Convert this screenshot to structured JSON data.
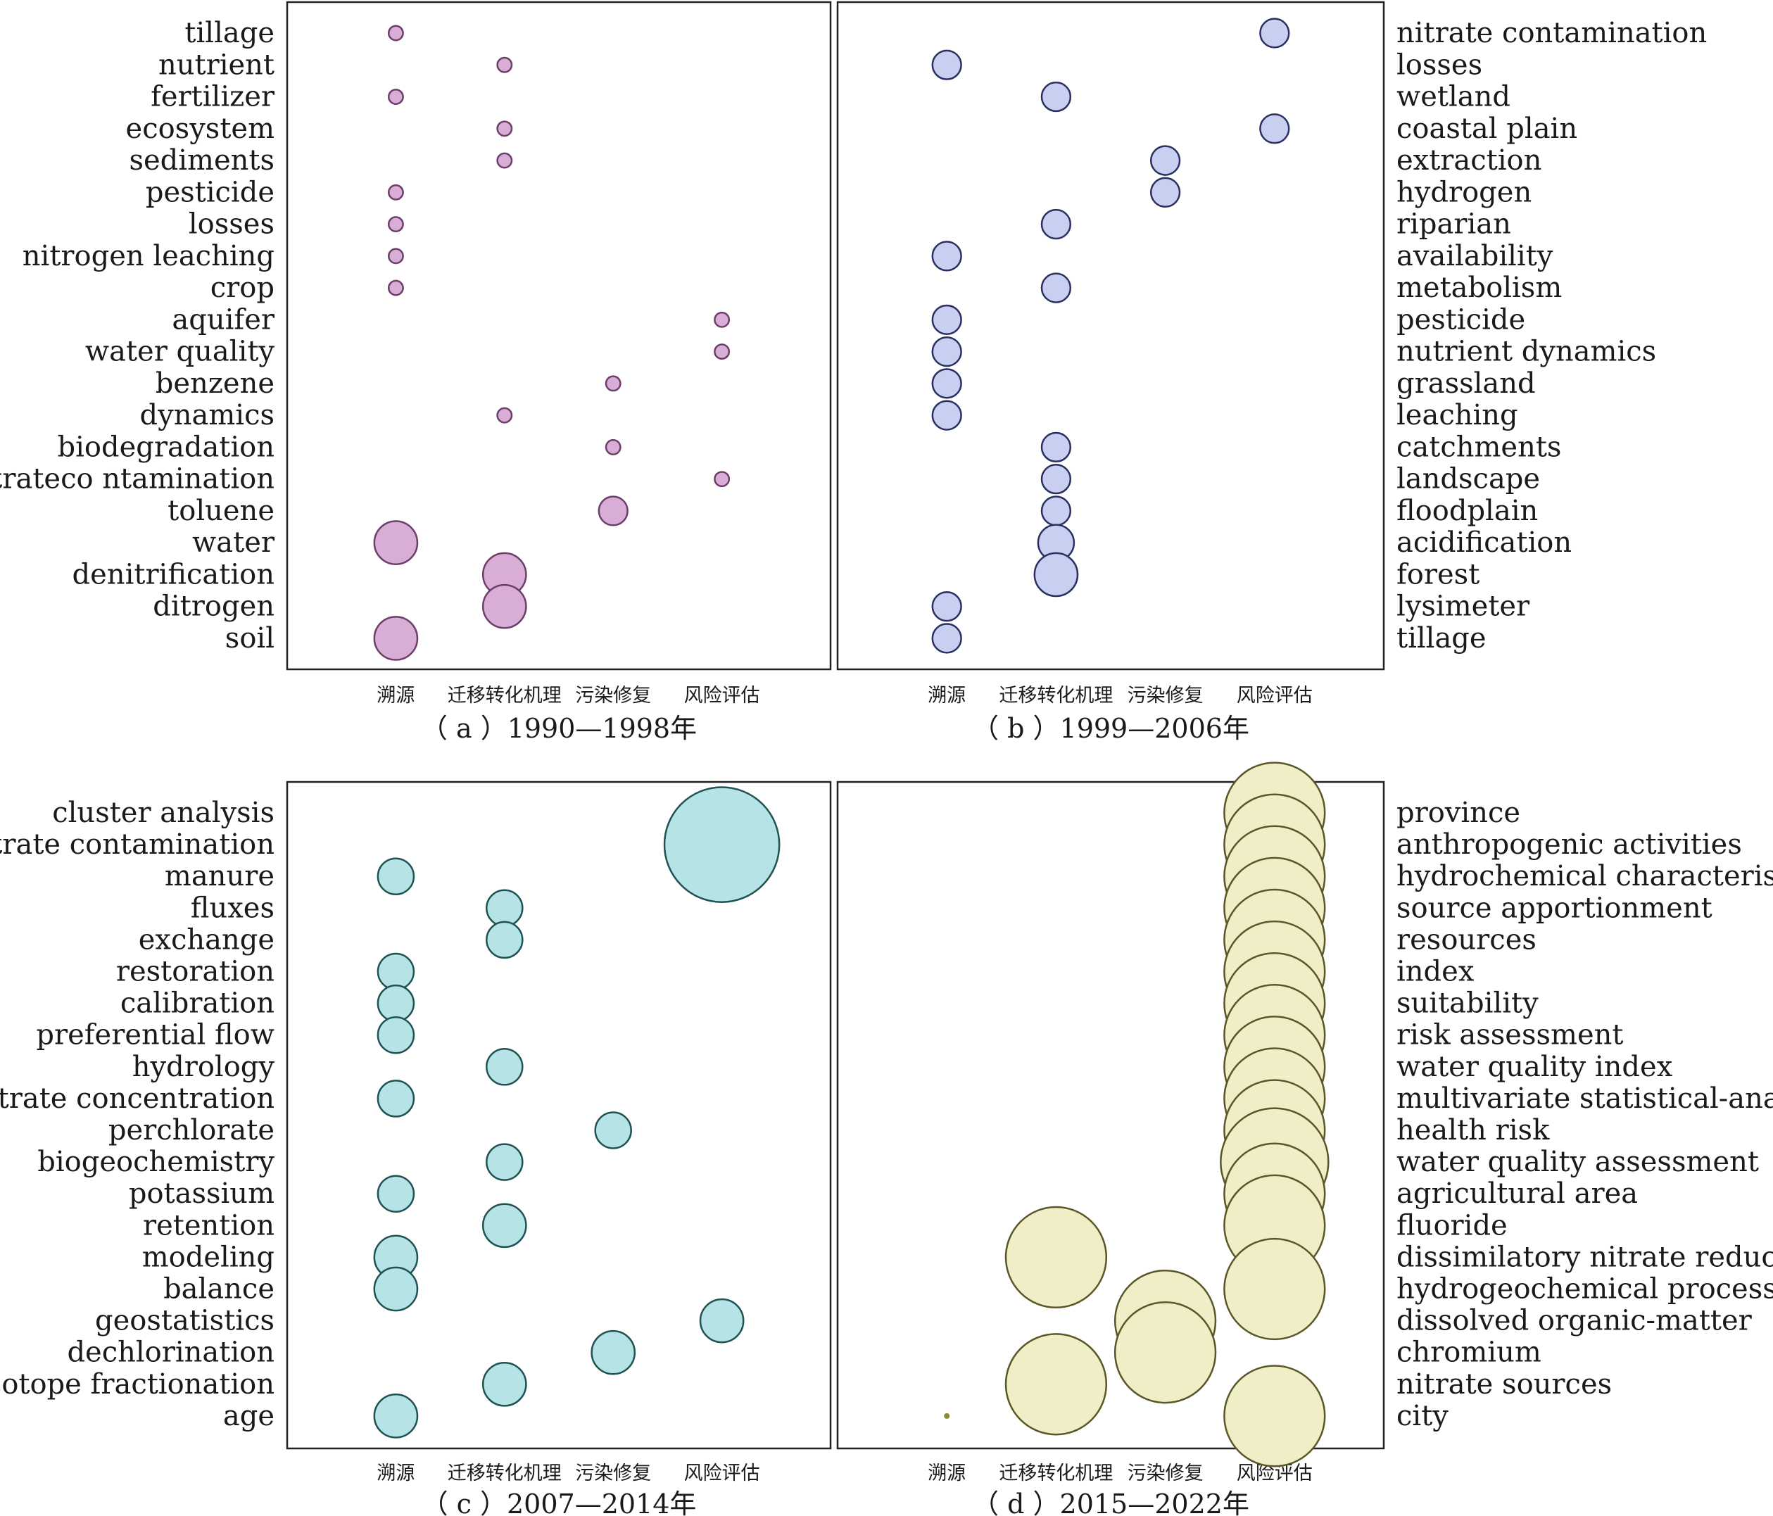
{
  "x_categories": [
    "溯源",
    "迁移转化机理",
    "污染修复",
    "风险评估"
  ],
  "chart_data": [
    {
      "type": "scatter",
      "caption": "（ a ）1990—1998年",
      "label_side": "left",
      "fill": "#d9aed6",
      "stroke": "#6d3e69",
      "categories": [
        "tillage",
        "nutrient",
        "fertilizer",
        "ecosystem",
        "sediments",
        "pesticide",
        "losses",
        "nitrogen leaching",
        "crop",
        "aquifer",
        "water quality",
        "benzene",
        "dynamics",
        "biodegradation",
        "nitrateco ntamination",
        "toluene",
        "water",
        "denitrification",
        "ditrogen",
        "soil"
      ],
      "points": [
        {
          "x": "溯源",
          "size": 1
        },
        {
          "x": "迁移转化机理",
          "size": 1
        },
        {
          "x": "溯源",
          "size": 1
        },
        {
          "x": "迁移转化机理",
          "size": 1
        },
        {
          "x": "迁移转化机理",
          "size": 1
        },
        {
          "x": "溯源",
          "size": 1
        },
        {
          "x": "溯源",
          "size": 1
        },
        {
          "x": "溯源",
          "size": 1
        },
        {
          "x": "溯源",
          "size": 1
        },
        {
          "x": "风险评估",
          "size": 1
        },
        {
          "x": "风险评估",
          "size": 1
        },
        {
          "x": "污染修复",
          "size": 1
        },
        {
          "x": "迁移转化机理",
          "size": 1
        },
        {
          "x": "污染修复",
          "size": 1
        },
        {
          "x": "风险评估",
          "size": 1
        },
        {
          "x": "污染修复",
          "size": 2
        },
        {
          "x": "溯源",
          "size": 3
        },
        {
          "x": "迁移转化机理",
          "size": 3
        },
        {
          "x": "迁移转化机理",
          "size": 3
        },
        {
          "x": "溯源",
          "size": 3
        }
      ]
    },
    {
      "type": "scatter",
      "caption": "（ b ）1999—2006年",
      "label_side": "right",
      "fill": "#c8cff0",
      "stroke": "#2a3060",
      "categories": [
        "nitrate contamination",
        "losses",
        "wetland",
        "coastal plain",
        "extraction",
        "hydrogen",
        "riparian",
        "availability",
        "metabolism",
        "pesticide",
        "nutrient dynamics",
        "grassland",
        "leaching",
        "catchments",
        "landscape",
        "floodplain",
        "acidification",
        "forest",
        "lysimeter",
        "tillage"
      ],
      "points": [
        {
          "x": "风险评估",
          "size": 2
        },
        {
          "x": "溯源",
          "size": 2
        },
        {
          "x": "迁移转化机理",
          "size": 2
        },
        {
          "x": "风险评估",
          "size": 2
        },
        {
          "x": "污染修复",
          "size": 2
        },
        {
          "x": "污染修复",
          "size": 2
        },
        {
          "x": "迁移转化机理",
          "size": 2
        },
        {
          "x": "溯源",
          "size": 2
        },
        {
          "x": "迁移转化机理",
          "size": 2
        },
        {
          "x": "溯源",
          "size": 2
        },
        {
          "x": "溯源",
          "size": 2
        },
        {
          "x": "溯源",
          "size": 2
        },
        {
          "x": "溯源",
          "size": 2
        },
        {
          "x": "迁移转化机理",
          "size": 2
        },
        {
          "x": "迁移转化机理",
          "size": 2
        },
        {
          "x": "迁移转化机理",
          "size": 2
        },
        {
          "x": "迁移转化机理",
          "size": 2.5
        },
        {
          "x": "迁移转化机理",
          "size": 3
        },
        {
          "x": "溯源",
          "size": 2
        },
        {
          "x": "溯源",
          "size": 2
        }
      ]
    },
    {
      "type": "scatter",
      "caption": "（ c ）2007—2014年",
      "label_side": "left",
      "fill": "#b6e3e5",
      "stroke": "#1f5252",
      "categories": [
        "cluster analysis",
        "nitrate contamination",
        "manure",
        "fluxes",
        "exchange",
        "restoration",
        "calibration",
        "preferential flow",
        "hydrology",
        "nitrate concentration",
        "perchlorate",
        "biogeochemistry",
        "potassium",
        "retention",
        "modeling",
        "balance",
        "geostatistics",
        "dechlorination",
        "isotope fractionation",
        "age"
      ],
      "points": [
        {
          "x": "风险评估",
          "size": 3
        },
        {
          "x": "风险评估",
          "size": 8
        },
        {
          "x": "溯源",
          "size": 2.5
        },
        {
          "x": "迁移转化机理",
          "size": 2.5
        },
        {
          "x": "迁移转化机理",
          "size": 2.5
        },
        {
          "x": "溯源",
          "size": 2.5
        },
        {
          "x": "溯源",
          "size": 2.5
        },
        {
          "x": "溯源",
          "size": 2.5
        },
        {
          "x": "迁移转化机理",
          "size": 2.5
        },
        {
          "x": "溯源",
          "size": 2.5
        },
        {
          "x": "污染修复",
          "size": 2.5
        },
        {
          "x": "迁移转化机理",
          "size": 2.5
        },
        {
          "x": "溯源",
          "size": 2.5
        },
        {
          "x": "迁移转化机理",
          "size": 3
        },
        {
          "x": "溯源",
          "size": 3
        },
        {
          "x": "溯源",
          "size": 3
        },
        {
          "x": "风险评估",
          "size": 3
        },
        {
          "x": "污染修复",
          "size": 3
        },
        {
          "x": "迁移转化机理",
          "size": 3
        },
        {
          "x": "溯源",
          "size": 3
        }
      ]
    },
    {
      "type": "scatter",
      "caption": "（ d ）2015—2022年",
      "label_side": "right",
      "fill": "#efeec7",
      "stroke": "#5a5628",
      "categories": [
        "province",
        "anthropogenic activities",
        "hydrochemical characteristics",
        "source apportionment",
        "resources",
        "index",
        "suitability",
        "risk assessment",
        "water quality index",
        "multivariate statistical-analysis",
        "health risk",
        "water quality assessment",
        "agricultural area",
        "fluoride",
        "dissimilatory nitrate reduction",
        "hydrogeochemical processes",
        "dissolved organic-matter",
        "chromium",
        "nitrate sources",
        "city"
      ],
      "points": [
        {
          "x": "风险评估",
          "size": 7
        },
        {
          "x": "风险评估",
          "size": 7
        },
        {
          "x": "风险评估",
          "size": 7
        },
        {
          "x": "风险评估",
          "size": 7
        },
        {
          "x": "风险评估",
          "size": 7
        },
        {
          "x": "风险评估",
          "size": 7
        },
        {
          "x": "风险评估",
          "size": 7
        },
        {
          "x": "风险评估",
          "size": 7
        },
        {
          "x": "风险评估",
          "size": 7
        },
        {
          "x": "风险评估",
          "size": 7
        },
        {
          "x": "风险评估",
          "size": 7
        },
        {
          "x": "风险评估",
          "size": 7.5
        },
        {
          "x": "风险评估",
          "size": 7
        },
        {
          "x": "风险评估",
          "size": 7
        },
        {
          "x": "迁移转化机理",
          "size": 7
        },
        {
          "x": "风险评估",
          "size": 7
        },
        {
          "x": "污染修复",
          "size": 7
        },
        {
          "x": "污染修复",
          "size": 7
        },
        {
          "x": "迁移转化机理",
          "size": 7
        },
        {
          "x": "风险评估",
          "size": 7
        }
      ],
      "extra_points": [
        {
          "x": "溯源",
          "y": "city",
          "size": 0.3,
          "fill": "#8a8a30"
        }
      ]
    }
  ]
}
